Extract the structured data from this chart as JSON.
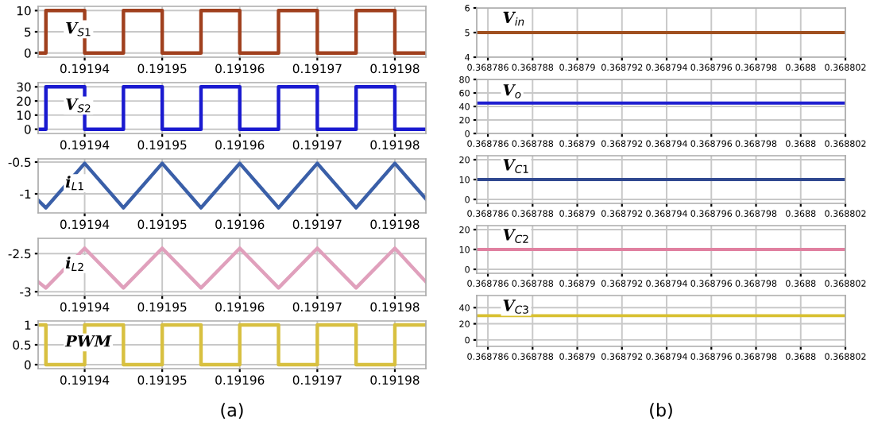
{
  "chart_data": [
    {
      "type": "line",
      "x": [
        0.191934,
        0.191935,
        0.191935,
        0.19194,
        0.19194,
        0.191945,
        0.191945,
        0.19195,
        0.19195,
        0.191955,
        0.191955,
        0.19196,
        0.19196,
        0.191965,
        0.191965,
        0.19197,
        0.19197,
        0.191975,
        0.191975,
        0.19198,
        0.19198,
        0.191984
      ],
      "series": [
        {
          "name": "V$_{S1}$",
          "color": "#a0401e",
          "values": [
            0,
            0,
            10,
            10,
            0,
            0,
            10,
            10,
            0,
            0,
            10,
            10,
            0,
            0,
            10,
            10,
            0,
            0,
            10,
            10,
            0,
            0
          ]
        }
      ],
      "xlim": [
        0.191934,
        0.191984
      ],
      "xticks": [
        0.19194,
        0.19195,
        0.19196,
        0.19197,
        0.19198
      ],
      "ylim": [
        -1,
        11
      ],
      "yticks": [
        0,
        5,
        10
      ],
      "grid": true
    },
    {
      "type": "line",
      "x": [
        0.191934,
        0.191935,
        0.191935,
        0.19194,
        0.19194,
        0.191945,
        0.191945,
        0.19195,
        0.19195,
        0.191955,
        0.191955,
        0.19196,
        0.19196,
        0.191965,
        0.191965,
        0.19197,
        0.19197,
        0.191975,
        0.191975,
        0.19198,
        0.19198,
        0.191984
      ],
      "series": [
        {
          "name": "V$_{S2}$",
          "color": "#1a1ad0",
          "values": [
            0,
            0,
            30,
            30,
            0,
            0,
            30,
            30,
            0,
            0,
            30,
            30,
            0,
            0,
            30,
            30,
            0,
            0,
            30,
            30,
            0,
            0
          ]
        }
      ],
      "xlim": [
        0.191934,
        0.191984
      ],
      "xticks": [
        0.19194,
        0.19195,
        0.19196,
        0.19197,
        0.19198
      ],
      "ylim": [
        -3,
        33
      ],
      "yticks": [
        0,
        10,
        20,
        30
      ],
      "grid": true
    },
    {
      "type": "line",
      "x": [
        0.191934,
        0.191935,
        0.19194,
        0.191945,
        0.19195,
        0.191955,
        0.19196,
        0.191965,
        0.19197,
        0.191975,
        0.19198,
        0.191984
      ],
      "series": [
        {
          "name": "i$_{L1}$",
          "color": "#3a5fa8",
          "values": [
            -1.1,
            -1.22,
            -0.52,
            -1.22,
            -0.52,
            -1.22,
            -0.52,
            -1.22,
            -0.52,
            -1.22,
            -0.52,
            -1.08
          ]
        }
      ],
      "xlim": [
        0.191934,
        0.191984
      ],
      "xticks": [
        0.19194,
        0.19195,
        0.19196,
        0.19197,
        0.19198
      ],
      "ylim": [
        -1.3,
        -0.45
      ],
      "yticks": [
        -1,
        -0.5
      ],
      "grid": true
    },
    {
      "type": "line",
      "x": [
        0.191934,
        0.191935,
        0.19194,
        0.191945,
        0.19195,
        0.191955,
        0.19196,
        0.191965,
        0.19197,
        0.191975,
        0.19198,
        0.191984
      ],
      "series": [
        {
          "name": "i$_{L2}$",
          "color": "#e0a0bc",
          "values": [
            -2.87,
            -2.95,
            -2.43,
            -2.95,
            -2.43,
            -2.95,
            -2.43,
            -2.95,
            -2.43,
            -2.95,
            -2.43,
            -2.87
          ]
        }
      ],
      "xlim": [
        0.191934,
        0.191984
      ],
      "xticks": [
        0.19194,
        0.19195,
        0.19196,
        0.19197,
        0.19198
      ],
      "ylim": [
        -3.05,
        -2.3
      ],
      "yticks": [
        -3,
        -2.5
      ],
      "grid": true
    },
    {
      "type": "line",
      "x": [
        0.191934,
        0.191935,
        0.191935,
        0.19194,
        0.19194,
        0.191945,
        0.191945,
        0.19195,
        0.19195,
        0.191955,
        0.191955,
        0.19196,
        0.19196,
        0.191965,
        0.191965,
        0.19197,
        0.19197,
        0.191975,
        0.191975,
        0.19198,
        0.19198,
        0.191984
      ],
      "series": [
        {
          "name": "PWM",
          "color": "#d8c040",
          "values": [
            1,
            1,
            0,
            0,
            1,
            1,
            0,
            0,
            1,
            1,
            0,
            0,
            1,
            1,
            0,
            0,
            1,
            1,
            0,
            0,
            1,
            1
          ]
        }
      ],
      "xlim": [
        0.191934,
        0.191984
      ],
      "xticks": [
        0.19194,
        0.19195,
        0.19196,
        0.19197,
        0.19198
      ],
      "ylim": [
        -0.1,
        1.1
      ],
      "yticks": [
        0,
        0.5,
        1
      ],
      "grid": true,
      "annotations": [
        "(a)"
      ]
    },
    {
      "type": "line",
      "x": [
        0.3687855,
        0.368802
      ],
      "series": [
        {
          "name": "V$_{in}$",
          "color": "#a05020",
          "values": [
            5,
            5
          ]
        }
      ],
      "xlim": [
        0.3687855,
        0.368802
      ],
      "xticks": [
        0.368786,
        0.368788,
        0.36879,
        0.368792,
        0.368794,
        0.368796,
        0.368798,
        0.3688,
        0.368802
      ],
      "ylim": [
        4,
        6
      ],
      "yticks": [
        4,
        5,
        6
      ],
      "grid": true
    },
    {
      "type": "line",
      "x": [
        0.3687855,
        0.368802
      ],
      "series": [
        {
          "name": "V$_{o}$",
          "color": "#2020d0",
          "values": [
            45,
            45
          ]
        }
      ],
      "xlim": [
        0.3687855,
        0.368802
      ],
      "xticks": [
        0.368786,
        0.368788,
        0.36879,
        0.368792,
        0.368794,
        0.368796,
        0.368798,
        0.3688,
        0.368802
      ],
      "ylim": [
        0,
        80
      ],
      "yticks": [
        0,
        20,
        40,
        60,
        80
      ],
      "grid": true
    },
    {
      "type": "line",
      "x": [
        0.3687855,
        0.368802
      ],
      "series": [
        {
          "name": "V$_{C1}$",
          "color": "#304890",
          "values": [
            10,
            10
          ]
        }
      ],
      "xlim": [
        0.3687855,
        0.368802
      ],
      "xticks": [
        0.368786,
        0.368788,
        0.36879,
        0.368792,
        0.368794,
        0.368796,
        0.368798,
        0.3688,
        0.368802
      ],
      "ylim": [
        -2,
        22
      ],
      "yticks": [
        0,
        10,
        20
      ],
      "grid": true
    },
    {
      "type": "line",
      "x": [
        0.3687855,
        0.368802
      ],
      "series": [
        {
          "name": "V$_{C2}$",
          "color": "#e080a0",
          "values": [
            10,
            10
          ]
        }
      ],
      "xlim": [
        0.3687855,
        0.368802
      ],
      "xticks": [
        0.368786,
        0.368788,
        0.36879,
        0.368792,
        0.368794,
        0.368796,
        0.368798,
        0.3688,
        0.368802
      ],
      "ylim": [
        -2,
        22
      ],
      "yticks": [
        0,
        10,
        20
      ],
      "grid": true
    },
    {
      "type": "line",
      "x": [
        0.3687855,
        0.368802
      ],
      "series": [
        {
          "name": "V$_{C3}$",
          "color": "#d8c030",
          "values": [
            30,
            30
          ]
        }
      ],
      "xlim": [
        0.3687855,
        0.368802
      ],
      "xticks": [
        0.368786,
        0.368788,
        0.36879,
        0.368792,
        0.368794,
        0.368796,
        0.368798,
        0.3688,
        0.368802
      ],
      "ylim": [
        -8,
        55
      ],
      "yticks": [
        0,
        20,
        40
      ],
      "grid": true,
      "annotations": [
        "(b)"
      ]
    }
  ]
}
